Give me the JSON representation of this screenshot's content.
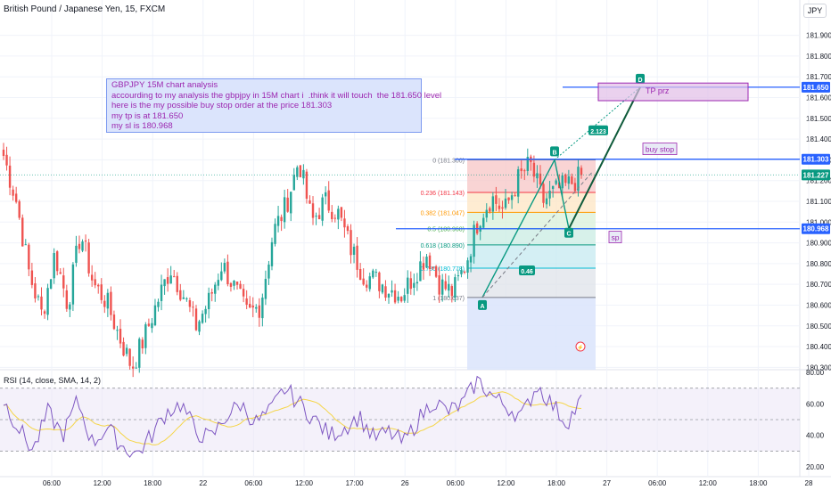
{
  "header": {
    "symbol_title": "British Pound / Japanese Yen, 15, FXCM",
    "currency": "JPY",
    "rsi_title": "RSI (14, close, SMA, 14, 2)"
  },
  "colors": {
    "up": "#26a69a",
    "down": "#ef5350",
    "blue_line": "#2962ff",
    "purple": "#9c27b0",
    "rsi_line": "#7e57c2",
    "rsi_ma": "#f5d547",
    "green_tag": "#089981"
  },
  "annotations": {
    "note_lines": [
      "GBPJPY 15M chart analysis",
      "accourding to my analysis the gbpjpy in 15M chart i  .think it will touch  the 181.650 level",
      "here is the my possible buy stop order at the price 181.303",
      "my tp is at 181.650",
      "my sl is 180.968"
    ],
    "tp_label": "TP prz",
    "buy_stop_label": "buy stop",
    "sl_label": "sp",
    "point_a": "A",
    "point_b": "B",
    "point_c": "C",
    "point_d": "D",
    "ratio_bc": "0.46",
    "ratio_cd": "2.123",
    "ratio_b_c_hidden": "",
    "fib_levels": [
      {
        "ratio": "0",
        "price": "181.300",
        "label": "0 (181.300)",
        "color": "#787b86"
      },
      {
        "ratio": "0.236",
        "price": "181.143",
        "label": "0.236 (181.143)",
        "color": "#f23645"
      },
      {
        "ratio": "0.382",
        "price": "181.047",
        "label": "0.382 (181.047)",
        "color": "#ff9800"
      },
      {
        "ratio": "0.5",
        "price": "180.968",
        "label": "0.5 (180.968)",
        "color": "#4caf50"
      },
      {
        "ratio": "0.618",
        "price": "180.890",
        "label": "0.618 (180.890)",
        "color": "#089981"
      },
      {
        "ratio": "0.786",
        "price": "180.778",
        "label": "0.786 (180.778)",
        "color": "#00bcd4"
      },
      {
        "ratio": "1",
        "price": "180.637",
        "label": "1 (180.637)",
        "color": "#787b86"
      }
    ]
  },
  "price_tags": [
    {
      "price": 181.65,
      "text": "181.650",
      "bg": "#2962ff"
    },
    {
      "price": 181.303,
      "text": "181.303",
      "bg": "#2962ff"
    },
    {
      "price": 181.227,
      "text": "181.227",
      "bg": "#089981"
    },
    {
      "price": 180.968,
      "text": "180.968",
      "bg": "#2962ff"
    }
  ],
  "chart_data": [
    {
      "type": "candlestick",
      "title": "British Pound / Japanese Yen, 15, FXCM",
      "ylim": [
        180.28,
        181.98
      ],
      "y_ticks": [
        "181.900",
        "181.800",
        "181.700",
        "181.600",
        "181.500",
        "181.400",
        "181.300",
        "181.200",
        "181.100",
        "181.000",
        "180.900",
        "180.800",
        "180.700",
        "180.600",
        "180.500",
        "180.400",
        "180.300"
      ],
      "x_ticks": [
        "06:00",
        "12:00",
        "18:00",
        "22",
        "06:00",
        "12:00",
        "17:00",
        "26",
        "06:00",
        "12:00",
        "18:00",
        "27",
        "06:00",
        "12:00",
        "18:00",
        "28"
      ],
      "anchor_closes": [
        181.32,
        181.1,
        180.75,
        180.55,
        180.85,
        180.6,
        180.95,
        180.7,
        180.62,
        180.45,
        180.3,
        180.45,
        180.62,
        180.78,
        180.65,
        180.5,
        180.62,
        180.8,
        180.68,
        180.55,
        180.6,
        180.95,
        181.08,
        181.3,
        181.0,
        181.1,
        181.05,
        180.88,
        180.75,
        180.72,
        180.68,
        180.65,
        180.75,
        180.85,
        180.7,
        180.66,
        180.8,
        181.02,
        181.12,
        181.05,
        181.2,
        181.28,
        181.1,
        181.15,
        181.18,
        181.22
      ],
      "last_price": 181.227,
      "horizontal_levels": [
        181.65,
        181.303,
        180.968
      ],
      "harmonic_points": [
        {
          "label": "A",
          "price": 180.637
        },
        {
          "label": "B",
          "price": 181.3
        },
        {
          "label": "C",
          "price": 180.968
        },
        {
          "label": "D",
          "price": 181.65
        }
      ]
    },
    {
      "type": "line",
      "title": "RSI (14, close, SMA, 14, 2)",
      "ylim": [
        20,
        80
      ],
      "y_ticks": [
        "80.00",
        "60.00",
        "40.00",
        "20.00"
      ],
      "bands": [
        70,
        50,
        30
      ],
      "rsi_anchors": [
        62,
        45,
        30,
        55,
        40,
        62,
        35,
        45,
        33,
        28,
        40,
        55,
        60,
        42,
        38,
        52,
        60,
        48,
        55,
        70,
        60,
        50,
        40,
        45,
        52,
        38,
        42,
        35,
        50,
        62,
        55,
        60,
        75,
        65,
        58,
        52,
        72,
        60,
        48,
        62
      ],
      "series": [
        {
          "name": "RSI",
          "color": "#7e57c2"
        },
        {
          "name": "RSI-based MA",
          "color": "#f5d547"
        }
      ]
    }
  ]
}
